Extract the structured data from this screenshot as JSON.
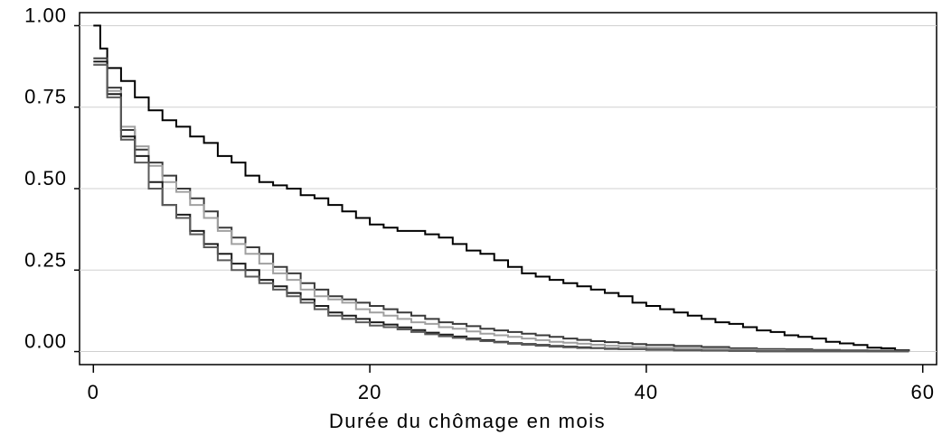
{
  "chart_data": {
    "type": "line",
    "step": true,
    "title": "",
    "xlabel": "Durée du chômage en mois",
    "ylabel": "",
    "xlim": [
      -1,
      61
    ],
    "ylim": [
      -0.04,
      1.04
    ],
    "x_ticks": [
      0,
      20,
      40,
      60
    ],
    "x_tick_labels": [
      "0",
      "20",
      "40",
      "60"
    ],
    "y_ticks": [
      0,
      0.25,
      0.5,
      0.75,
      1.0
    ],
    "y_tick_labels": [
      "0.00",
      "0.25",
      "0.50",
      "0.75",
      "1.00"
    ],
    "grid": "horizontal",
    "legend": "none",
    "series": [
      {
        "color": "#000000",
        "points": [
          [
            0,
            1.0
          ],
          [
            0.5,
            0.93
          ],
          [
            1,
            0.87
          ],
          [
            2,
            0.83
          ],
          [
            3,
            0.78
          ],
          [
            4,
            0.74
          ],
          [
            5,
            0.71
          ],
          [
            6,
            0.69
          ],
          [
            7,
            0.66
          ],
          [
            8,
            0.64
          ],
          [
            9,
            0.6
          ],
          [
            10,
            0.58
          ],
          [
            11,
            0.54
          ],
          [
            12,
            0.52
          ],
          [
            13,
            0.51
          ],
          [
            14,
            0.5
          ],
          [
            15,
            0.48
          ],
          [
            16,
            0.47
          ],
          [
            17,
            0.45
          ],
          [
            18,
            0.43
          ],
          [
            19,
            0.41
          ],
          [
            20,
            0.39
          ],
          [
            21,
            0.38
          ],
          [
            22,
            0.37
          ],
          [
            23,
            0.37
          ],
          [
            24,
            0.36
          ],
          [
            25,
            0.35
          ],
          [
            26,
            0.33
          ],
          [
            27,
            0.31
          ],
          [
            28,
            0.3
          ],
          [
            29,
            0.28
          ],
          [
            30,
            0.26
          ],
          [
            31,
            0.24
          ],
          [
            32,
            0.23
          ],
          [
            33,
            0.22
          ],
          [
            34,
            0.21
          ],
          [
            35,
            0.2
          ],
          [
            36,
            0.19
          ],
          [
            37,
            0.18
          ],
          [
            38,
            0.17
          ],
          [
            39,
            0.15
          ],
          [
            40,
            0.14
          ],
          [
            41,
            0.13
          ],
          [
            42,
            0.12
          ],
          [
            43,
            0.11
          ],
          [
            44,
            0.1
          ],
          [
            45,
            0.09
          ],
          [
            46,
            0.085
          ],
          [
            47,
            0.075
          ],
          [
            48,
            0.065
          ],
          [
            49,
            0.06
          ],
          [
            50,
            0.05
          ],
          [
            51,
            0.045
          ],
          [
            52,
            0.04
          ],
          [
            53,
            0.03
          ],
          [
            54,
            0.025
          ],
          [
            55,
            0.02
          ],
          [
            56,
            0.012
          ],
          [
            57,
            0.01
          ],
          [
            58,
            0.004
          ],
          [
            59,
            0.002
          ]
        ]
      },
      {
        "color": "#3a3a3a",
        "points": [
          [
            0,
            0.9
          ],
          [
            1,
            0.81
          ],
          [
            2,
            0.68
          ],
          [
            3,
            0.62
          ],
          [
            4,
            0.58
          ],
          [
            5,
            0.54
          ],
          [
            6,
            0.5
          ],
          [
            7,
            0.47
          ],
          [
            8,
            0.43
          ],
          [
            9,
            0.38
          ],
          [
            10,
            0.35
          ],
          [
            11,
            0.32
          ],
          [
            12,
            0.3
          ],
          [
            13,
            0.26
          ],
          [
            14,
            0.24
          ],
          [
            15,
            0.21
          ],
          [
            16,
            0.19
          ],
          [
            17,
            0.17
          ],
          [
            18,
            0.16
          ],
          [
            19,
            0.15
          ],
          [
            20,
            0.14
          ],
          [
            21,
            0.13
          ],
          [
            22,
            0.12
          ],
          [
            23,
            0.11
          ],
          [
            24,
            0.1
          ],
          [
            25,
            0.09
          ],
          [
            26,
            0.085
          ],
          [
            27,
            0.078
          ],
          [
            28,
            0.07
          ],
          [
            29,
            0.065
          ],
          [
            30,
            0.06
          ],
          [
            31,
            0.055
          ],
          [
            32,
            0.05
          ],
          [
            33,
            0.045
          ],
          [
            34,
            0.04
          ],
          [
            35,
            0.036
          ],
          [
            36,
            0.032
          ],
          [
            37,
            0.029
          ],
          [
            38,
            0.026
          ],
          [
            39,
            0.023
          ],
          [
            40,
            0.02
          ],
          [
            42,
            0.017
          ],
          [
            44,
            0.014
          ],
          [
            46,
            0.01
          ],
          [
            48,
            0.008
          ],
          [
            50,
            0.007
          ],
          [
            52,
            0.005
          ],
          [
            54,
            0.004
          ],
          [
            56,
            0.003
          ],
          [
            58,
            0.002
          ],
          [
            59,
            0.001
          ]
        ]
      },
      {
        "color": "#a0a0a0",
        "points": [
          [
            0,
            0.88
          ],
          [
            1,
            0.8
          ],
          [
            2,
            0.69
          ],
          [
            3,
            0.63
          ],
          [
            4,
            0.57
          ],
          [
            5,
            0.52
          ],
          [
            6,
            0.49
          ],
          [
            7,
            0.45
          ],
          [
            8,
            0.41
          ],
          [
            9,
            0.37
          ],
          [
            10,
            0.33
          ],
          [
            11,
            0.3
          ],
          [
            12,
            0.27
          ],
          [
            13,
            0.24
          ],
          [
            14,
            0.22
          ],
          [
            15,
            0.19
          ],
          [
            16,
            0.17
          ],
          [
            17,
            0.16
          ],
          [
            18,
            0.15
          ],
          [
            19,
            0.13
          ],
          [
            20,
            0.12
          ],
          [
            21,
            0.11
          ],
          [
            22,
            0.1
          ],
          [
            23,
            0.09
          ],
          [
            24,
            0.085
          ],
          [
            25,
            0.075
          ],
          [
            26,
            0.07
          ],
          [
            27,
            0.062
          ],
          [
            28,
            0.055
          ],
          [
            29,
            0.05
          ],
          [
            30,
            0.045
          ],
          [
            31,
            0.04
          ],
          [
            32,
            0.035
          ],
          [
            33,
            0.03
          ],
          [
            34,
            0.027
          ],
          [
            35,
            0.024
          ],
          [
            36,
            0.021
          ],
          [
            37,
            0.018
          ],
          [
            38,
            0.016
          ],
          [
            39,
            0.014
          ],
          [
            40,
            0.012
          ],
          [
            42,
            0.01
          ],
          [
            44,
            0.008
          ],
          [
            46,
            0.006
          ],
          [
            48,
            0.004
          ],
          [
            50,
            0.003
          ],
          [
            52,
            0.002
          ],
          [
            54,
            0.002
          ],
          [
            56,
            0.001
          ],
          [
            58,
            0.001
          ]
        ]
      },
      {
        "color": "#1c1c1c",
        "points": [
          [
            0,
            0.89
          ],
          [
            1,
            0.79
          ],
          [
            2,
            0.66
          ],
          [
            3,
            0.6
          ],
          [
            4,
            0.52
          ],
          [
            5,
            0.45
          ],
          [
            6,
            0.42
          ],
          [
            7,
            0.37
          ],
          [
            8,
            0.33
          ],
          [
            9,
            0.3
          ],
          [
            10,
            0.27
          ],
          [
            11,
            0.25
          ],
          [
            12,
            0.22
          ],
          [
            13,
            0.2
          ],
          [
            14,
            0.18
          ],
          [
            15,
            0.16
          ],
          [
            16,
            0.14
          ],
          [
            17,
            0.12
          ],
          [
            18,
            0.11
          ],
          [
            19,
            0.1
          ],
          [
            20,
            0.09
          ],
          [
            21,
            0.083
          ],
          [
            22,
            0.074
          ],
          [
            23,
            0.066
          ],
          [
            24,
            0.058
          ],
          [
            25,
            0.052
          ],
          [
            26,
            0.046
          ],
          [
            27,
            0.04
          ],
          [
            28,
            0.035
          ],
          [
            29,
            0.03
          ],
          [
            30,
            0.026
          ],
          [
            31,
            0.023
          ],
          [
            32,
            0.02
          ],
          [
            33,
            0.017
          ],
          [
            34,
            0.015
          ],
          [
            35,
            0.013
          ],
          [
            36,
            0.011
          ],
          [
            37,
            0.009
          ],
          [
            38,
            0.008
          ],
          [
            40,
            0.006
          ],
          [
            42,
            0.004
          ],
          [
            44,
            0.003
          ],
          [
            46,
            0.002
          ],
          [
            48,
            0.001
          ],
          [
            50,
            0.001
          ]
        ]
      },
      {
        "color": "#5a5a5a",
        "points": [
          [
            0,
            0.88
          ],
          [
            1,
            0.78
          ],
          [
            2,
            0.65
          ],
          [
            3,
            0.58
          ],
          [
            4,
            0.5
          ],
          [
            5,
            0.45
          ],
          [
            6,
            0.41
          ],
          [
            7,
            0.36
          ],
          [
            8,
            0.32
          ],
          [
            9,
            0.28
          ],
          [
            10,
            0.25
          ],
          [
            11,
            0.23
          ],
          [
            12,
            0.21
          ],
          [
            13,
            0.19
          ],
          [
            14,
            0.17
          ],
          [
            15,
            0.15
          ],
          [
            16,
            0.13
          ],
          [
            17,
            0.11
          ],
          [
            18,
            0.1
          ],
          [
            19,
            0.09
          ],
          [
            20,
            0.08
          ],
          [
            21,
            0.075
          ],
          [
            22,
            0.068
          ],
          [
            23,
            0.06
          ],
          [
            24,
            0.053
          ],
          [
            25,
            0.047
          ],
          [
            26,
            0.042
          ],
          [
            27,
            0.037
          ],
          [
            28,
            0.032
          ],
          [
            29,
            0.028
          ],
          [
            30,
            0.024
          ],
          [
            31,
            0.021
          ],
          [
            32,
            0.018
          ],
          [
            33,
            0.015
          ],
          [
            34,
            0.013
          ],
          [
            35,
            0.011
          ],
          [
            36,
            0.01
          ],
          [
            37,
            0.008
          ],
          [
            38,
            0.007
          ],
          [
            40,
            0.005
          ],
          [
            42,
            0.004
          ],
          [
            44,
            0.003
          ],
          [
            46,
            0.002
          ],
          [
            48,
            0.001
          ]
        ]
      }
    ]
  }
}
